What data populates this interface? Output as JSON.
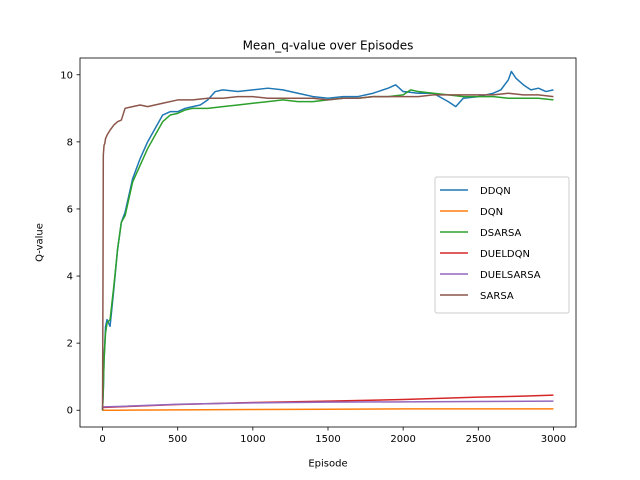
{
  "chart_data": {
    "type": "line",
    "title": "Mean_q-value over Episodes",
    "xlabel": "Episode",
    "ylabel": "Q-value",
    "xlim": [
      -150,
      3150
    ],
    "ylim": [
      -0.5,
      10.5
    ],
    "xticks": [
      0,
      500,
      1000,
      1500,
      2000,
      2500,
      3000
    ],
    "yticks": [
      0,
      2,
      4,
      6,
      8,
      10
    ],
    "grid": false,
    "legend_position": "center-right",
    "series": [
      {
        "name": "DDQN",
        "color": "#1f77b4",
        "x": [
          0,
          5,
          10,
          20,
          30,
          50,
          75,
          100,
          125,
          150,
          200,
          250,
          300,
          350,
          400,
          450,
          500,
          550,
          600,
          650,
          700,
          750,
          800,
          900,
          1000,
          1100,
          1200,
          1300,
          1400,
          1500,
          1600,
          1700,
          1800,
          1900,
          1950,
          2000,
          2100,
          2200,
          2300,
          2350,
          2400,
          2500,
          2600,
          2650,
          2700,
          2720,
          2750,
          2800,
          2850,
          2900,
          2950,
          3000
        ],
        "y": [
          0.0,
          0.6,
          1.5,
          2.5,
          2.7,
          2.5,
          3.6,
          4.8,
          5.6,
          5.9,
          6.9,
          7.5,
          8.0,
          8.4,
          8.8,
          8.9,
          8.9,
          9.0,
          9.05,
          9.1,
          9.25,
          9.5,
          9.55,
          9.5,
          9.55,
          9.6,
          9.55,
          9.45,
          9.35,
          9.3,
          9.35,
          9.35,
          9.45,
          9.6,
          9.7,
          9.5,
          9.45,
          9.45,
          9.2,
          9.05,
          9.3,
          9.35,
          9.45,
          9.55,
          9.85,
          10.1,
          9.9,
          9.7,
          9.55,
          9.6,
          9.5,
          9.55
        ]
      },
      {
        "name": "DQN",
        "color": "#ff7f0e",
        "x": [
          0,
          100,
          500,
          1000,
          1500,
          2000,
          2500,
          3000
        ],
        "y": [
          0.0,
          0.0,
          0.01,
          0.02,
          0.03,
          0.04,
          0.04,
          0.04
        ]
      },
      {
        "name": "DSARSA",
        "color": "#2ca02c",
        "x": [
          0,
          5,
          10,
          20,
          30,
          50,
          75,
          100,
          125,
          150,
          200,
          250,
          300,
          350,
          400,
          450,
          500,
          550,
          600,
          650,
          700,
          800,
          900,
          1000,
          1100,
          1200,
          1300,
          1400,
          1500,
          1600,
          1700,
          1800,
          1900,
          2000,
          2050,
          2100,
          2200,
          2300,
          2400,
          2500,
          2600,
          2700,
          2800,
          2900,
          3000
        ],
        "y": [
          0.0,
          0.6,
          1.5,
          2.3,
          2.6,
          2.7,
          3.7,
          4.8,
          5.6,
          5.8,
          6.8,
          7.3,
          7.8,
          8.2,
          8.6,
          8.8,
          8.85,
          8.95,
          9.0,
          9.0,
          9.0,
          9.05,
          9.1,
          9.15,
          9.2,
          9.25,
          9.2,
          9.2,
          9.25,
          9.3,
          9.3,
          9.35,
          9.35,
          9.4,
          9.55,
          9.5,
          9.45,
          9.4,
          9.35,
          9.35,
          9.35,
          9.3,
          9.3,
          9.3,
          9.25
        ]
      },
      {
        "name": "DUELDQN",
        "color": "#d62728",
        "x": [
          0,
          100,
          500,
          1000,
          1500,
          2000,
          2500,
          2800,
          3000
        ],
        "y": [
          0.08,
          0.1,
          0.17,
          0.23,
          0.27,
          0.32,
          0.39,
          0.42,
          0.45
        ]
      },
      {
        "name": "DUELSARSA",
        "color": "#9467bd",
        "x": [
          0,
          100,
          500,
          1000,
          1500,
          2000,
          2500,
          3000
        ],
        "y": [
          0.1,
          0.11,
          0.18,
          0.22,
          0.24,
          0.25,
          0.26,
          0.27
        ]
      },
      {
        "name": "SARSA",
        "color": "#8c564b",
        "x": [
          0,
          3,
          5,
          10,
          15,
          20,
          30,
          50,
          75,
          100,
          125,
          150,
          200,
          250,
          300,
          400,
          500,
          600,
          700,
          800,
          900,
          1000,
          1100,
          1200,
          1300,
          1400,
          1500,
          1600,
          1700,
          1800,
          1900,
          2000,
          2100,
          2200,
          2300,
          2400,
          2500,
          2600,
          2700,
          2800,
          2900,
          3000
        ],
        "y": [
          0.0,
          4.0,
          7.6,
          7.9,
          7.95,
          8.1,
          8.2,
          8.35,
          8.5,
          8.6,
          8.65,
          9.0,
          9.05,
          9.1,
          9.05,
          9.15,
          9.25,
          9.25,
          9.3,
          9.3,
          9.35,
          9.35,
          9.3,
          9.3,
          9.3,
          9.3,
          9.25,
          9.3,
          9.3,
          9.35,
          9.35,
          9.35,
          9.35,
          9.4,
          9.4,
          9.4,
          9.4,
          9.4,
          9.45,
          9.4,
          9.4,
          9.35
        ]
      }
    ]
  }
}
